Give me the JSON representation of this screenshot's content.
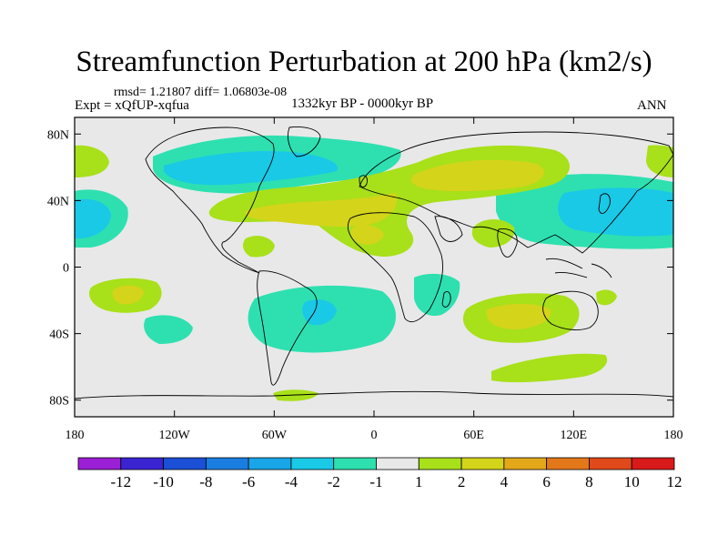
{
  "title": "Streamfunction Perturbation at 200 hPa (km2/s)",
  "stats": "rmsd= 1.21807 diff= 1.06803e-08",
  "experiment": "Expt = xQfUP-xqfua",
  "period": "1332kyr BP - 0000kyr BP",
  "season": "ANN",
  "lat_labels": [
    "80N",
    "40N",
    "0",
    "40S",
    "80S"
  ],
  "lon_labels": [
    "180",
    "120W",
    "60W",
    "0",
    "60E",
    "120E",
    "180"
  ],
  "colorbar": {
    "labels": [
      "-12",
      "-10",
      "-8",
      "-6",
      "-4",
      "-2",
      "-1",
      "1",
      "2",
      "4",
      "6",
      "8",
      "10",
      "12"
    ],
    "colors": [
      "#9b1fd4",
      "#3a23d1",
      "#1a4fd6",
      "#1a7ee0",
      "#18a6e8",
      "#19c9e6",
      "#2ee0b0",
      "#e8e8e8",
      "#a8e01a",
      "#d4d41a",
      "#e2a81a",
      "#e2781a",
      "#e04a1a",
      "#d81a1a"
    ]
  },
  "field": {
    "background": "#e8e8e8",
    "neg1": "#2ee0b0",
    "neg2": "#19c9e6",
    "pos1": "#a8e01a",
    "pos2": "#d4d41a",
    "pos3": "#e2a81a"
  }
}
